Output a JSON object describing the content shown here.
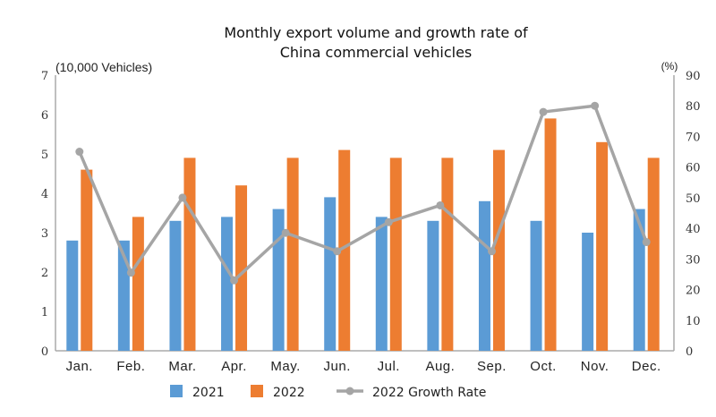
{
  "chart_data": {
    "type": "bar+line",
    "title_lines": [
      "Monthly export volume and growth rate of",
      "China commercial vehicles"
    ],
    "categories": [
      "Jan.",
      "Feb.",
      "Mar.",
      "Apr.",
      "May.",
      "Jun.",
      "Jul.",
      "Aug.",
      "Sep.",
      "Oct.",
      "Nov.",
      "Dec."
    ],
    "left_axis": {
      "label": "(10,000 Vehicles)",
      "ylim": [
        0,
        7
      ],
      "ticks": [
        "0",
        "1",
        "2",
        "3",
        "4",
        "5",
        "6",
        "7"
      ]
    },
    "right_axis": {
      "label": "(%)",
      "ylim": [
        0,
        90
      ],
      "ticks": [
        "0",
        "10",
        "20",
        "30",
        "40",
        "50",
        "60",
        "70",
        "80",
        "90"
      ]
    },
    "grid": false,
    "legend_position": "bottom",
    "series": [
      {
        "name": "2021",
        "type": "bar",
        "axis": "left",
        "color": "#5b9bd5",
        "values": [
          2.8,
          2.8,
          3.3,
          3.4,
          3.6,
          3.9,
          3.4,
          3.3,
          3.8,
          3.3,
          3.0,
          3.6
        ]
      },
      {
        "name": "2022",
        "type": "bar",
        "axis": "left",
        "color": "#ed7d31",
        "values": [
          4.6,
          3.4,
          4.9,
          4.2,
          4.9,
          5.1,
          4.9,
          4.9,
          5.1,
          5.9,
          5.3,
          4.9
        ]
      },
      {
        "name": "2022 Growth Rate",
        "type": "line",
        "axis": "right",
        "color": "#a5a5a5",
        "values": [
          65,
          25.5,
          50,
          23,
          38.5,
          32.5,
          42,
          47.5,
          32.5,
          78,
          80,
          35.5
        ]
      }
    ]
  }
}
